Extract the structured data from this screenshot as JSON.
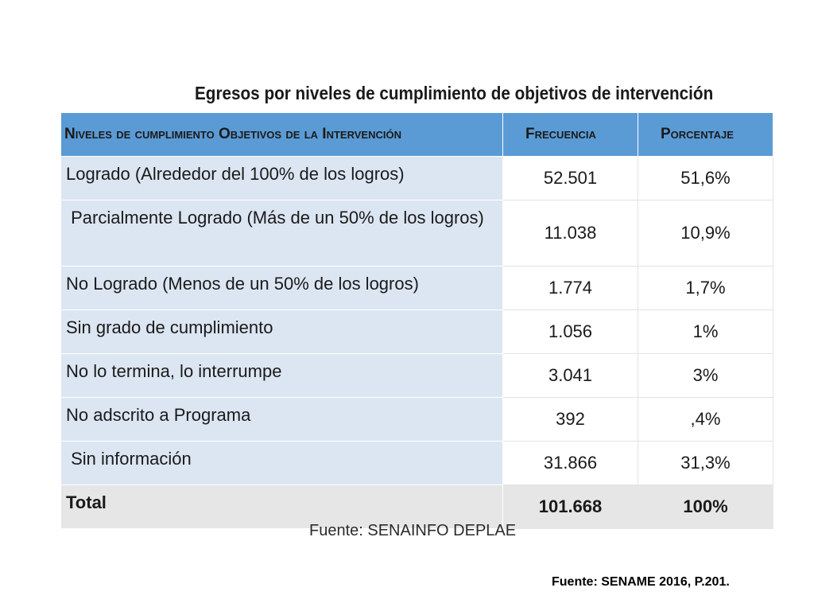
{
  "chart_data": {
    "type": "table",
    "title": "Egresos por niveles de cumplimiento de objetivos de intervención",
    "columns": [
      "Niveles de cumplimiento Objetivos de la Intervención",
      "Frecuencia",
      "Porcentaje"
    ],
    "rows": [
      {
        "label": "Logrado (Alrededor del 100% de los logros)",
        "frecuencia": "52.501",
        "porcentaje": "51,6%"
      },
      {
        "label": " Parcialmente Logrado (Más de un 50% de los logros)",
        "frecuencia": "11.038",
        "porcentaje": "10,9%"
      },
      {
        "label": "No Logrado (Menos de un 50% de los logros)",
        "frecuencia": "1.774",
        "porcentaje": "1,7%"
      },
      {
        "label": "Sin grado de cumplimiento",
        "frecuencia": "1.056",
        "porcentaje": "1%"
      },
      {
        "label": "No lo termina, lo interrumpe",
        "frecuencia": "3.041",
        "porcentaje": "3%"
      },
      {
        "label": "No adscrito a Programa",
        "frecuencia": "392",
        "porcentaje": ",4%"
      },
      {
        "label": " Sin información",
        "frecuencia": "31.866",
        "porcentaje": "31,3%"
      }
    ],
    "total": {
      "label": "Total",
      "frecuencia": "101.668",
      "porcentaje": "100%"
    },
    "header_color": "#5b9bd5",
    "label_cell_color": "#dce6f2",
    "total_row_color": "#e6e6e6"
  },
  "source_table": "Fuente: SENAINFO DEPLAE",
  "source_slide": "Fuente: SENAME 2016, P.201."
}
